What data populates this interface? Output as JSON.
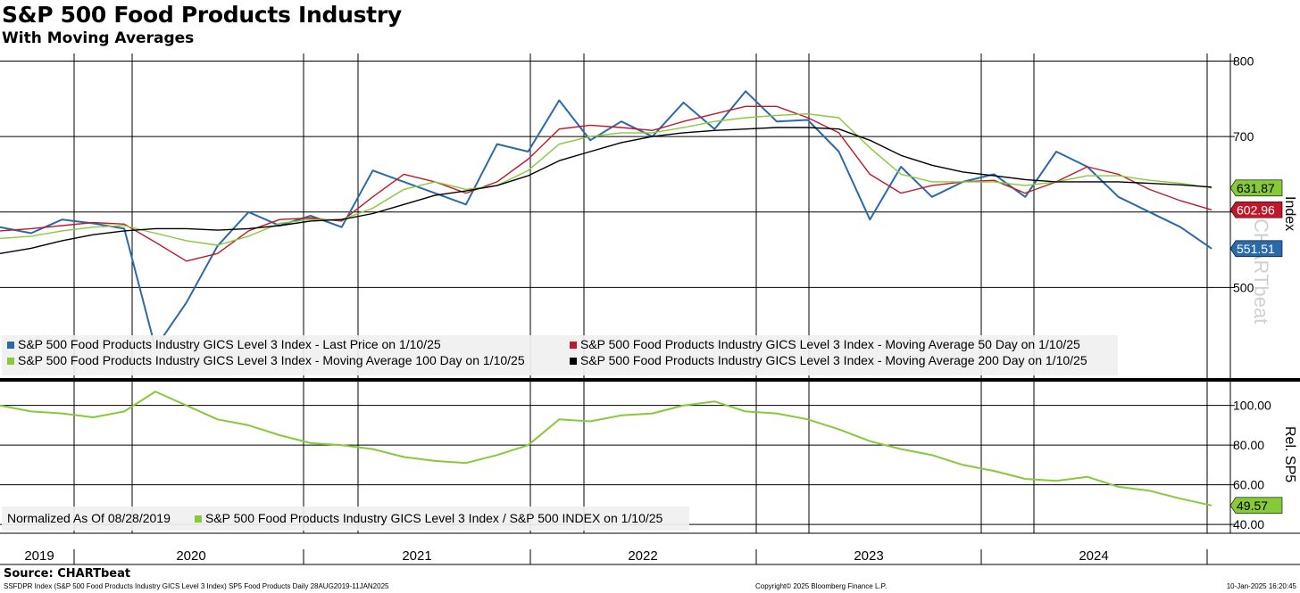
{
  "header": {
    "title": "S&P 500 Food Products Industry",
    "subtitle": "With Moving Averages"
  },
  "footer": {
    "source": "Source: CHARTbeat",
    "description": "SSFDPR Index (S&P 500 Food Products Industry GICS Level 3 Index) SP5 Food Products  Daily 28AUG2019-11JAN2025",
    "copyright": "Copyright© 2025 Bloomberg Finance L.P.",
    "timestamp": "10-Jan-2025 16:20:45"
  },
  "watermark": "CHARTbeat",
  "colors": {
    "last_price": "#2b6aa8",
    "ma50": "#c0182b",
    "ma100": "#86c93a",
    "ma200": "#000000",
    "relative": "#86c93a",
    "grid": "#000000"
  },
  "chart_data": [
    {
      "type": "line",
      "yaxis_label": "Index",
      "ylim": [
        380,
        810
      ],
      "y_ticks": [
        500,
        600,
        700,
        800
      ],
      "y_tick_labels": [
        "500",
        "",
        "700",
        "800"
      ],
      "grid": true,
      "legend_position": "bottom-left",
      "x_years": [
        "2019",
        "2020",
        "2021",
        "2022",
        "2023",
        "2024"
      ],
      "x_dates": [
        "2019-08-28",
        "2019-10",
        "2019-12",
        "2020-01-20",
        "2020-02-20",
        "2020-03-12",
        "2020-03-23",
        "2020-04",
        "2020-06",
        "2020-08",
        "2020-10",
        "2020-12",
        "2021-03",
        "2021-05",
        "2021-07",
        "2021-09",
        "2021-11",
        "2022-01",
        "2022-03",
        "2022-04-25",
        "2022-06",
        "2022-08",
        "2022-10",
        "2022-12",
        "2023-02",
        "2023-03",
        "2023-05",
        "2023-06",
        "2023-08",
        "2023-10",
        "2023-11",
        "2024-01",
        "2024-03",
        "2024-05",
        "2024-06",
        "2024-08",
        "2024-09",
        "2024-11",
        "2024-12",
        "2025-01-10"
      ],
      "series": [
        {
          "name": "S&P 500 Food Products Industry GICS Level 3 Index - Last Price on 1/10/25",
          "key": "last_price",
          "values": [
            580,
            572,
            590,
            585,
            578,
            420,
            480,
            555,
            600,
            582,
            595,
            580,
            655,
            640,
            625,
            610,
            690,
            680,
            748,
            695,
            720,
            700,
            745,
            710,
            760,
            720,
            722,
            680,
            590,
            660,
            620,
            640,
            650,
            620,
            680,
            660,
            620,
            600,
            580,
            551.51
          ],
          "end_label": "551.51"
        },
        {
          "name": "S&P 500 Food Products Industry GICS Level 3 Index - Moving Average 50 Day on 1/10/25",
          "key": "ma50",
          "values": [
            575,
            578,
            582,
            586,
            584,
            560,
            535,
            545,
            575,
            590,
            592,
            588,
            620,
            650,
            640,
            625,
            640,
            670,
            710,
            715,
            712,
            708,
            720,
            730,
            740,
            740,
            725,
            705,
            650,
            625,
            635,
            640,
            642,
            625,
            640,
            660,
            650,
            630,
            615,
            602.96
          ],
          "end_label": "602.96"
        },
        {
          "name": "S&P 500 Food Products Industry GICS Level 3 Index - Moving Average 100 Day on 1/10/25",
          "key": "ma100",
          "values": [
            565,
            568,
            575,
            580,
            582,
            572,
            562,
            556,
            568,
            585,
            590,
            590,
            605,
            630,
            640,
            630,
            635,
            655,
            690,
            700,
            705,
            705,
            712,
            720,
            725,
            728,
            730,
            725,
            685,
            650,
            640,
            640,
            640,
            635,
            640,
            648,
            648,
            642,
            638,
            631.87
          ],
          "end_label": "631.87"
        },
        {
          "name": "S&P 500 Food Products Industry GICS Level 3 Index - Moving Average 200 Day on 1/10/25",
          "key": "ma200",
          "values": [
            545,
            552,
            562,
            570,
            575,
            578,
            578,
            576,
            578,
            582,
            588,
            590,
            598,
            610,
            622,
            628,
            635,
            648,
            668,
            680,
            692,
            700,
            705,
            708,
            710,
            712,
            712,
            710,
            695,
            675,
            662,
            653,
            648,
            643,
            640,
            640,
            640,
            638,
            636,
            633
          ]
        }
      ]
    },
    {
      "type": "line",
      "yaxis_label": "Rel. SP5",
      "ylim": [
        36,
        112
      ],
      "y_ticks": [
        40,
        60,
        80,
        100
      ],
      "y_tick_labels": [
        "40.00",
        "60.00",
        "80.00",
        "100.00"
      ],
      "grid": true,
      "legend_position": "bottom-left",
      "normalization_note": "Normalized As Of 08/28/2019",
      "series": [
        {
          "name": "S&P 500 Food Products Industry GICS Level 3 Index / S&P 500 INDEX on 1/10/25",
          "key": "relative",
          "values": [
            100,
            97,
            96,
            94,
            97,
            107,
            100,
            93,
            90,
            85,
            81,
            80,
            78,
            74,
            72,
            71,
            75,
            80,
            93,
            92,
            95,
            96,
            100,
            102,
            97,
            96,
            93,
            88,
            82,
            78,
            75,
            70,
            67,
            63,
            62,
            64,
            59,
            57,
            53,
            49.57
          ],
          "end_label": "49.57"
        }
      ]
    }
  ]
}
